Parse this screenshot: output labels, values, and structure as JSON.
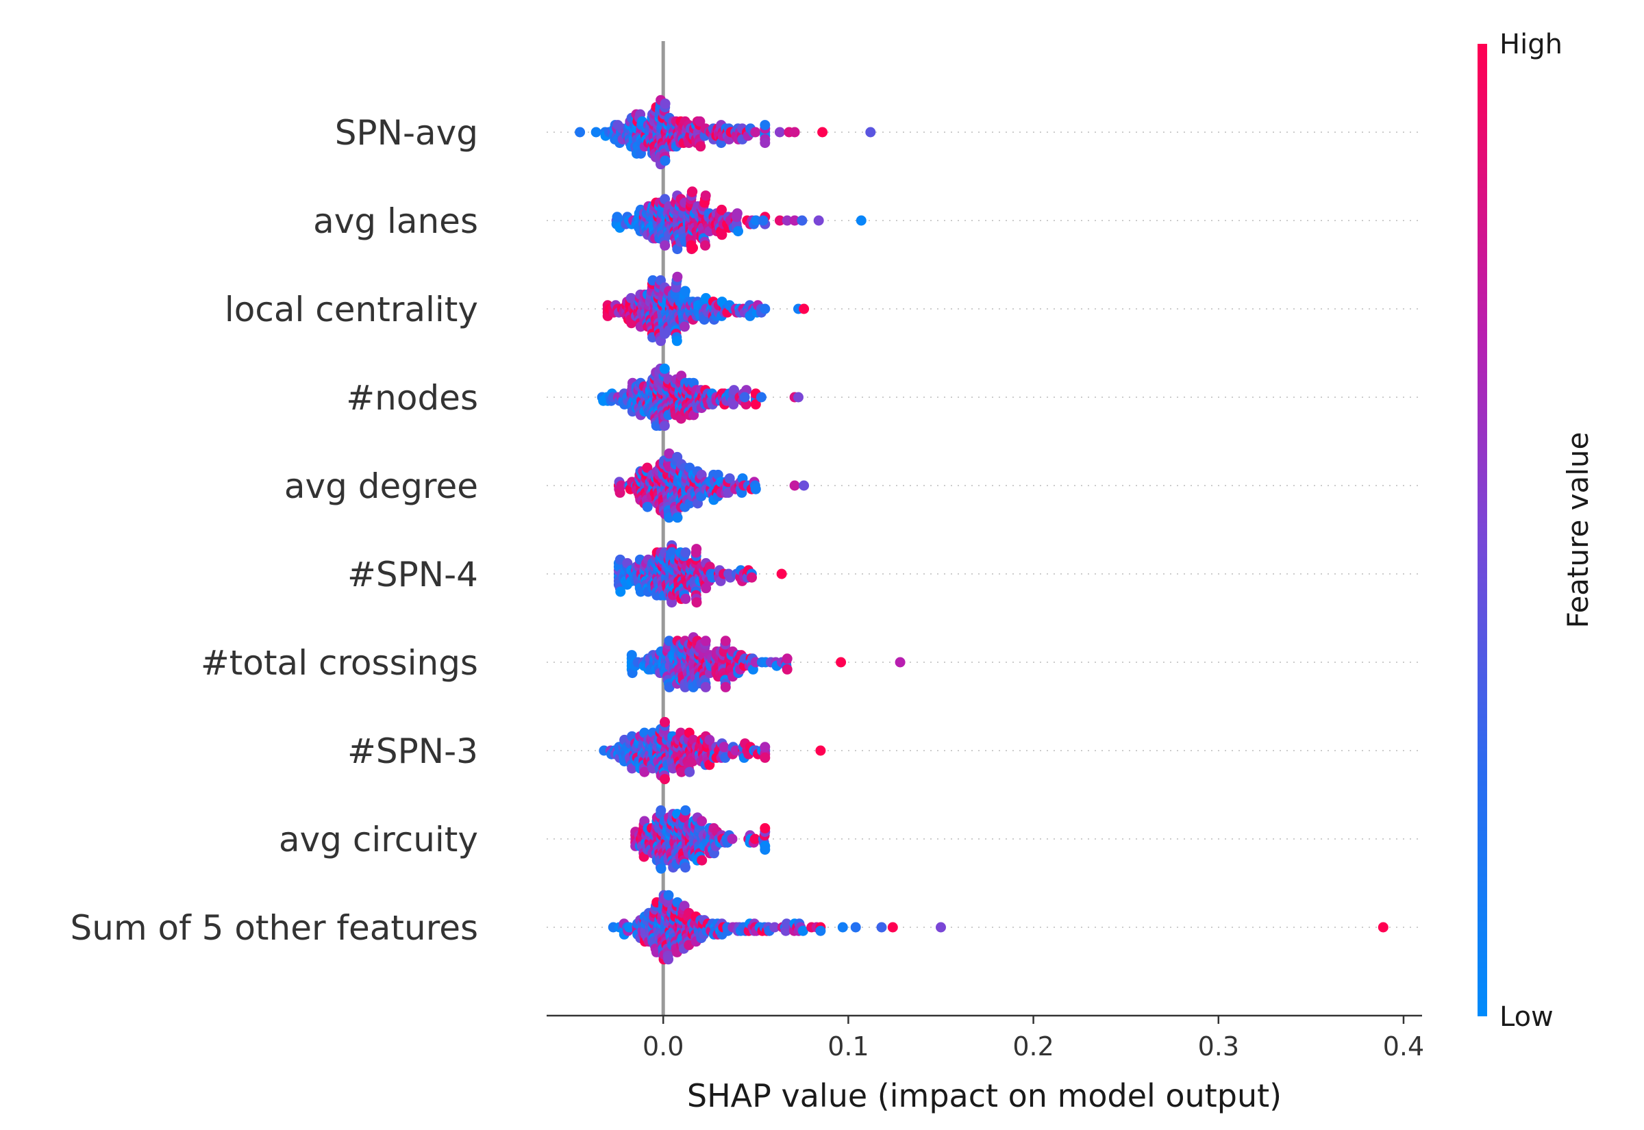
{
  "chart_data": {
    "type": "scatter",
    "subtype": "shap-beeswarm",
    "title": "",
    "xlabel": "SHAP value (impact on model output)",
    "ylabel": "",
    "xlim": [
      -0.063,
      0.41
    ],
    "xticks": [
      0.0,
      0.1,
      0.2,
      0.3,
      0.4
    ],
    "xtick_labels": [
      "0.0",
      "0.1",
      "0.2",
      "0.3",
      "0.4"
    ],
    "zero_line": true,
    "grid": false,
    "colorbar": {
      "title": "Feature value",
      "high_label": "High",
      "low_label": "Low",
      "low_color": "#008bfb",
      "high_color": "#ff0052"
    },
    "features": [
      {
        "name": "SPN-avg",
        "cluster": {
          "min": -0.045,
          "max": 0.055,
          "center_low": -0.02,
          "center_high": 0.012,
          "spread": 0.65
        },
        "outliers": [
          {
            "x": 0.063,
            "value": 0.55
          },
          {
            "x": 0.068,
            "value": 0.85
          },
          {
            "x": 0.071,
            "value": 0.8
          },
          {
            "x": 0.086,
            "value": 1.0
          },
          {
            "x": 0.112,
            "value": 0.4
          }
        ]
      },
      {
        "name": "avg lanes",
        "cluster": {
          "min": -0.028,
          "max": 0.055,
          "center_low": -0.01,
          "center_high": 0.018,
          "spread": 0.55
        },
        "outliers": [
          {
            "x": 0.05,
            "value": 0.1
          },
          {
            "x": 0.054,
            "value": 0.2
          },
          {
            "x": 0.063,
            "value": 0.9
          },
          {
            "x": 0.067,
            "value": 0.6
          },
          {
            "x": 0.071,
            "value": 0.7
          },
          {
            "x": 0.075,
            "value": 0.3
          },
          {
            "x": 0.084,
            "value": 0.5
          },
          {
            "x": 0.107,
            "value": 0.05
          }
        ]
      },
      {
        "name": "local centrality",
        "cluster": {
          "min": -0.03,
          "max": 0.055,
          "center_low": 0.012,
          "center_high": -0.018,
          "spread": 0.6
        },
        "outliers": [
          {
            "x": 0.073,
            "value": 0.1
          },
          {
            "x": 0.076,
            "value": 1.0
          }
        ]
      },
      {
        "name": "#nodes",
        "cluster": {
          "min": -0.033,
          "max": 0.05,
          "center_low": -0.015,
          "center_high": 0.01,
          "spread": 0.55
        },
        "outliers": [
          {
            "x": 0.044,
            "value": 0.3
          },
          {
            "x": 0.053,
            "value": 0.2
          },
          {
            "x": 0.071,
            "value": 0.85
          },
          {
            "x": 0.073,
            "value": 0.5
          }
        ]
      },
      {
        "name": "avg degree",
        "cluster": {
          "min": -0.024,
          "max": 0.05,
          "center_low": 0.012,
          "center_high": -0.005,
          "spread": 0.6
        },
        "outliers": [
          {
            "x": 0.071,
            "value": 0.75
          },
          {
            "x": 0.076,
            "value": 0.45
          }
        ]
      },
      {
        "name": "#SPN-4",
        "cluster": {
          "min": -0.024,
          "max": 0.048,
          "center_low": -0.012,
          "center_high": 0.01,
          "spread": 0.5
        },
        "outliers": [
          {
            "x": 0.064,
            "value": 1.0
          }
        ]
      },
      {
        "name": "#total crossings",
        "cluster": {
          "min": -0.017,
          "max": 0.067,
          "center_low": -0.005,
          "center_high": 0.03,
          "spread": 0.45
        },
        "outliers": [
          {
            "x": 0.096,
            "value": 1.0
          },
          {
            "x": 0.128,
            "value": 0.7
          }
        ]
      },
      {
        "name": "#SPN-3",
        "cluster": {
          "min": -0.032,
          "max": 0.055,
          "center_low": -0.015,
          "center_high": 0.012,
          "spread": 0.55
        },
        "outliers": [
          {
            "x": 0.085,
            "value": 1.0
          }
        ]
      },
      {
        "name": "avg circuity",
        "cluster": {
          "min": -0.015,
          "max": 0.055,
          "center_low": 0.01,
          "center_high": -0.002,
          "spread": 0.5
        },
        "outliers": []
      },
      {
        "name": "Sum of 5 other features",
        "cluster": {
          "min": -0.027,
          "max": 0.085,
          "center_low": -0.005,
          "center_high": 0.01,
          "spread": 0.6
        },
        "outliers": [
          {
            "x": 0.097,
            "value": 0.1
          },
          {
            "x": 0.104,
            "value": 0.2
          },
          {
            "x": 0.118,
            "value": 0.3
          },
          {
            "x": 0.124,
            "value": 1.0
          },
          {
            "x": 0.15,
            "value": 0.5
          },
          {
            "x": 0.389,
            "value": 1.0
          }
        ]
      }
    ]
  }
}
